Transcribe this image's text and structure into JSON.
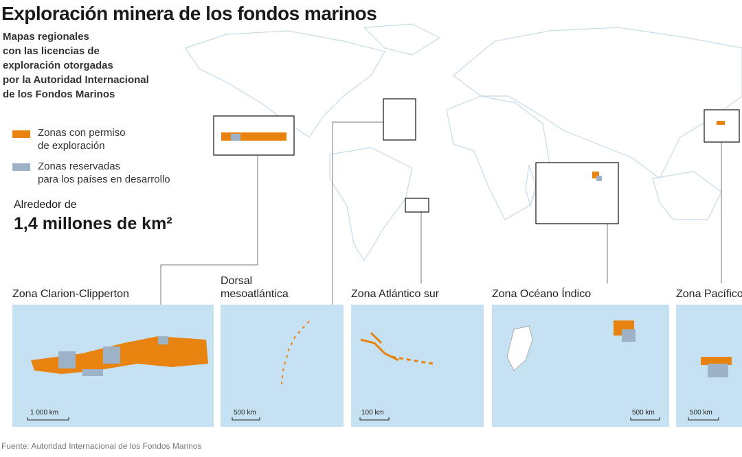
{
  "title": "Exploración minera de los fondos marinos",
  "subtitle": [
    "Mapas regionales",
    "con las licencias de",
    "exploración otorgadas",
    "por la Autoridad Internacional",
    "de los Fondos Marinos"
  ],
  "legend": [
    {
      "label": [
        "Zonas con permiso",
        "de exploración"
      ],
      "color": "#e8830f"
    },
    {
      "label": [
        "Zonas reservadas",
        "para los países en desarrollo"
      ],
      "color": "#9db2c6"
    }
  ],
  "total": {
    "lead": "Alrededor de",
    "value": "1,4 millones de km²"
  },
  "panels": [
    {
      "name": [
        "Zona Clarion-Clipperton"
      ],
      "scale": "1 000 km"
    },
    {
      "name": [
        "Dorsal",
        "mesoatlántica"
      ],
      "scale": "500 km"
    },
    {
      "name": [
        "Zona Atlántico sur"
      ],
      "scale": "100 km"
    },
    {
      "name": [
        "Zona Océano Índico"
      ],
      "scale": "500 km"
    },
    {
      "name": [
        "Zona Pacífico"
      ],
      "scale": "500 km"
    }
  ],
  "source": "Fuente: Autoridad Internacional de los Fondos Marinos"
}
